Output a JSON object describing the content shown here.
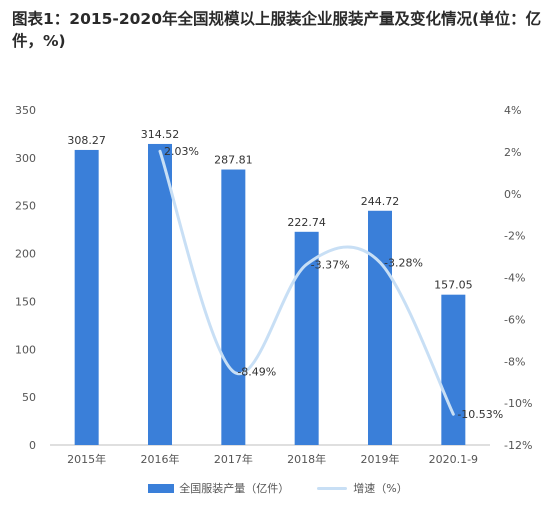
{
  "title": "图表1：2015-2020年全国规模以上服装企业服装产量及变化情况(单位：亿件，%)",
  "colors": {
    "bar": "#3a7fd9",
    "line": "#c8dff5",
    "axis": "#bfbfbf",
    "grid": "#e8e8e8",
    "text": "#555555"
  },
  "chart_data": {
    "type": "bar+line",
    "categories": [
      "2015年",
      "2016年",
      "2017年",
      "2018年",
      "2019年",
      "2020.1-9"
    ],
    "series": [
      {
        "name": "全国服装产量（亿件）",
        "type": "bar",
        "axis": "left",
        "values": [
          308.27,
          314.52,
          287.81,
          222.74,
          244.72,
          157.05
        ],
        "labels": [
          "308.27",
          "314.52",
          "287.81",
          "222.74",
          "244.72",
          "157.05"
        ]
      },
      {
        "name": "增速（%）",
        "type": "line",
        "axis": "right",
        "values": [
          null,
          2.03,
          -8.49,
          -3.37,
          -3.28,
          -10.53
        ],
        "labels": [
          "",
          "2.03%",
          "-8.49%",
          "-3.37%",
          "-3.28%",
          "-10.53%"
        ]
      }
    ],
    "y_left": {
      "ylim": [
        0,
        350
      ],
      "ticks": [
        0,
        50,
        100,
        150,
        200,
        250,
        300,
        350
      ],
      "tick_labels": [
        "0",
        "50",
        "100",
        "150",
        "200",
        "250",
        "300",
        "350"
      ]
    },
    "y_right": {
      "ylim": [
        -12,
        4
      ],
      "ticks": [
        -12,
        -10,
        -8,
        -6,
        -4,
        -2,
        0,
        2,
        4
      ],
      "tick_labels": [
        "-12%",
        "-10%",
        "-8%",
        "-6%",
        "-4%",
        "-2%",
        "0%",
        "2%",
        "4%"
      ]
    },
    "grid": false,
    "legend_position": "bottom"
  }
}
